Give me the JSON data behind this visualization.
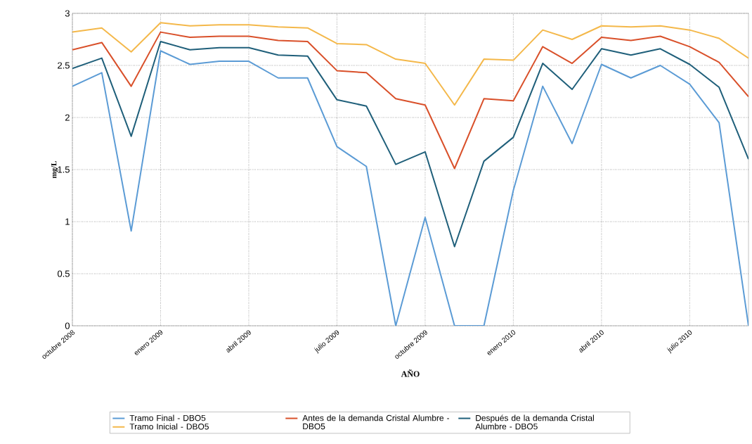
{
  "chart_data": {
    "type": "line",
    "xlabel": "AÑO",
    "ylabel": "mg/L",
    "x": [
      "2008-10",
      "2008-11",
      "2008-12",
      "2009-01",
      "2009-02",
      "2009-03",
      "2009-04",
      "2009-05",
      "2009-06",
      "2009-07",
      "2009-08",
      "2009-09",
      "2009-10",
      "2009-11",
      "2009-12",
      "2010-01",
      "2010-02",
      "2010-03",
      "2010-04",
      "2010-05",
      "2010-06",
      "2010-07",
      "2010-08",
      "2010-09"
    ],
    "series": [
      {
        "name": "Tramo Final - DBO5",
        "color": "#5b9bd5",
        "values": [
          2.3,
          2.43,
          0.91,
          2.64,
          2.51,
          2.54,
          2.54,
          2.38,
          2.38,
          1.72,
          1.53,
          0.0,
          1.04,
          0.0,
          0.0,
          1.3,
          2.3,
          1.75,
          2.51,
          2.38,
          2.5,
          2.32,
          1.95,
          0.0
        ]
      },
      {
        "name": "Antes de la demanda Cristal Alumbre - DBO5",
        "color": "#d9502a",
        "values": [
          2.65,
          2.72,
          2.3,
          2.82,
          2.77,
          2.78,
          2.78,
          2.74,
          2.73,
          2.45,
          2.43,
          2.18,
          2.12,
          1.51,
          2.18,
          2.16,
          2.68,
          2.52,
          2.77,
          2.74,
          2.78,
          2.68,
          2.53,
          2.2
        ]
      },
      {
        "name": "Después de la demanda Cristal Alumbre - DBO5",
        "color": "#1f5f7a",
        "values": [
          2.47,
          2.57,
          1.82,
          2.73,
          2.65,
          2.67,
          2.67,
          2.6,
          2.59,
          2.17,
          2.11,
          1.55,
          1.67,
          0.76,
          1.58,
          1.81,
          2.52,
          2.27,
          2.66,
          2.6,
          2.66,
          2.51,
          2.29,
          1.6
        ]
      },
      {
        "name": "Tramo Inicial - DBO5",
        "color": "#f4b84a",
        "values": [
          2.82,
          2.86,
          2.63,
          2.91,
          2.88,
          2.89,
          2.89,
          2.87,
          2.86,
          2.71,
          2.7,
          2.56,
          2.52,
          2.12,
          2.56,
          2.55,
          2.84,
          2.75,
          2.88,
          2.87,
          2.88,
          2.84,
          2.76,
          2.57
        ]
      }
    ],
    "xlim": [
      "2008-10",
      "2010-09"
    ],
    "xticks": [
      {
        "value": "2008-10",
        "label": "octubre 2008"
      },
      {
        "value": "2009-01",
        "label": "enero 2009"
      },
      {
        "value": "2009-04",
        "label": "abril 2009"
      },
      {
        "value": "2009-07",
        "label": "julio 2009"
      },
      {
        "value": "2009-10",
        "label": "octubre 2009"
      },
      {
        "value": "2010-01",
        "label": "enero 2010"
      },
      {
        "value": "2010-04",
        "label": "abril 2010"
      },
      {
        "value": "2010-07",
        "label": "julio 2010"
      }
    ],
    "ylim": [
      0,
      3
    ],
    "yticks": [
      0,
      0.5,
      1,
      1.5,
      2,
      2.5,
      3
    ],
    "grid": true,
    "legend": "bottom"
  }
}
